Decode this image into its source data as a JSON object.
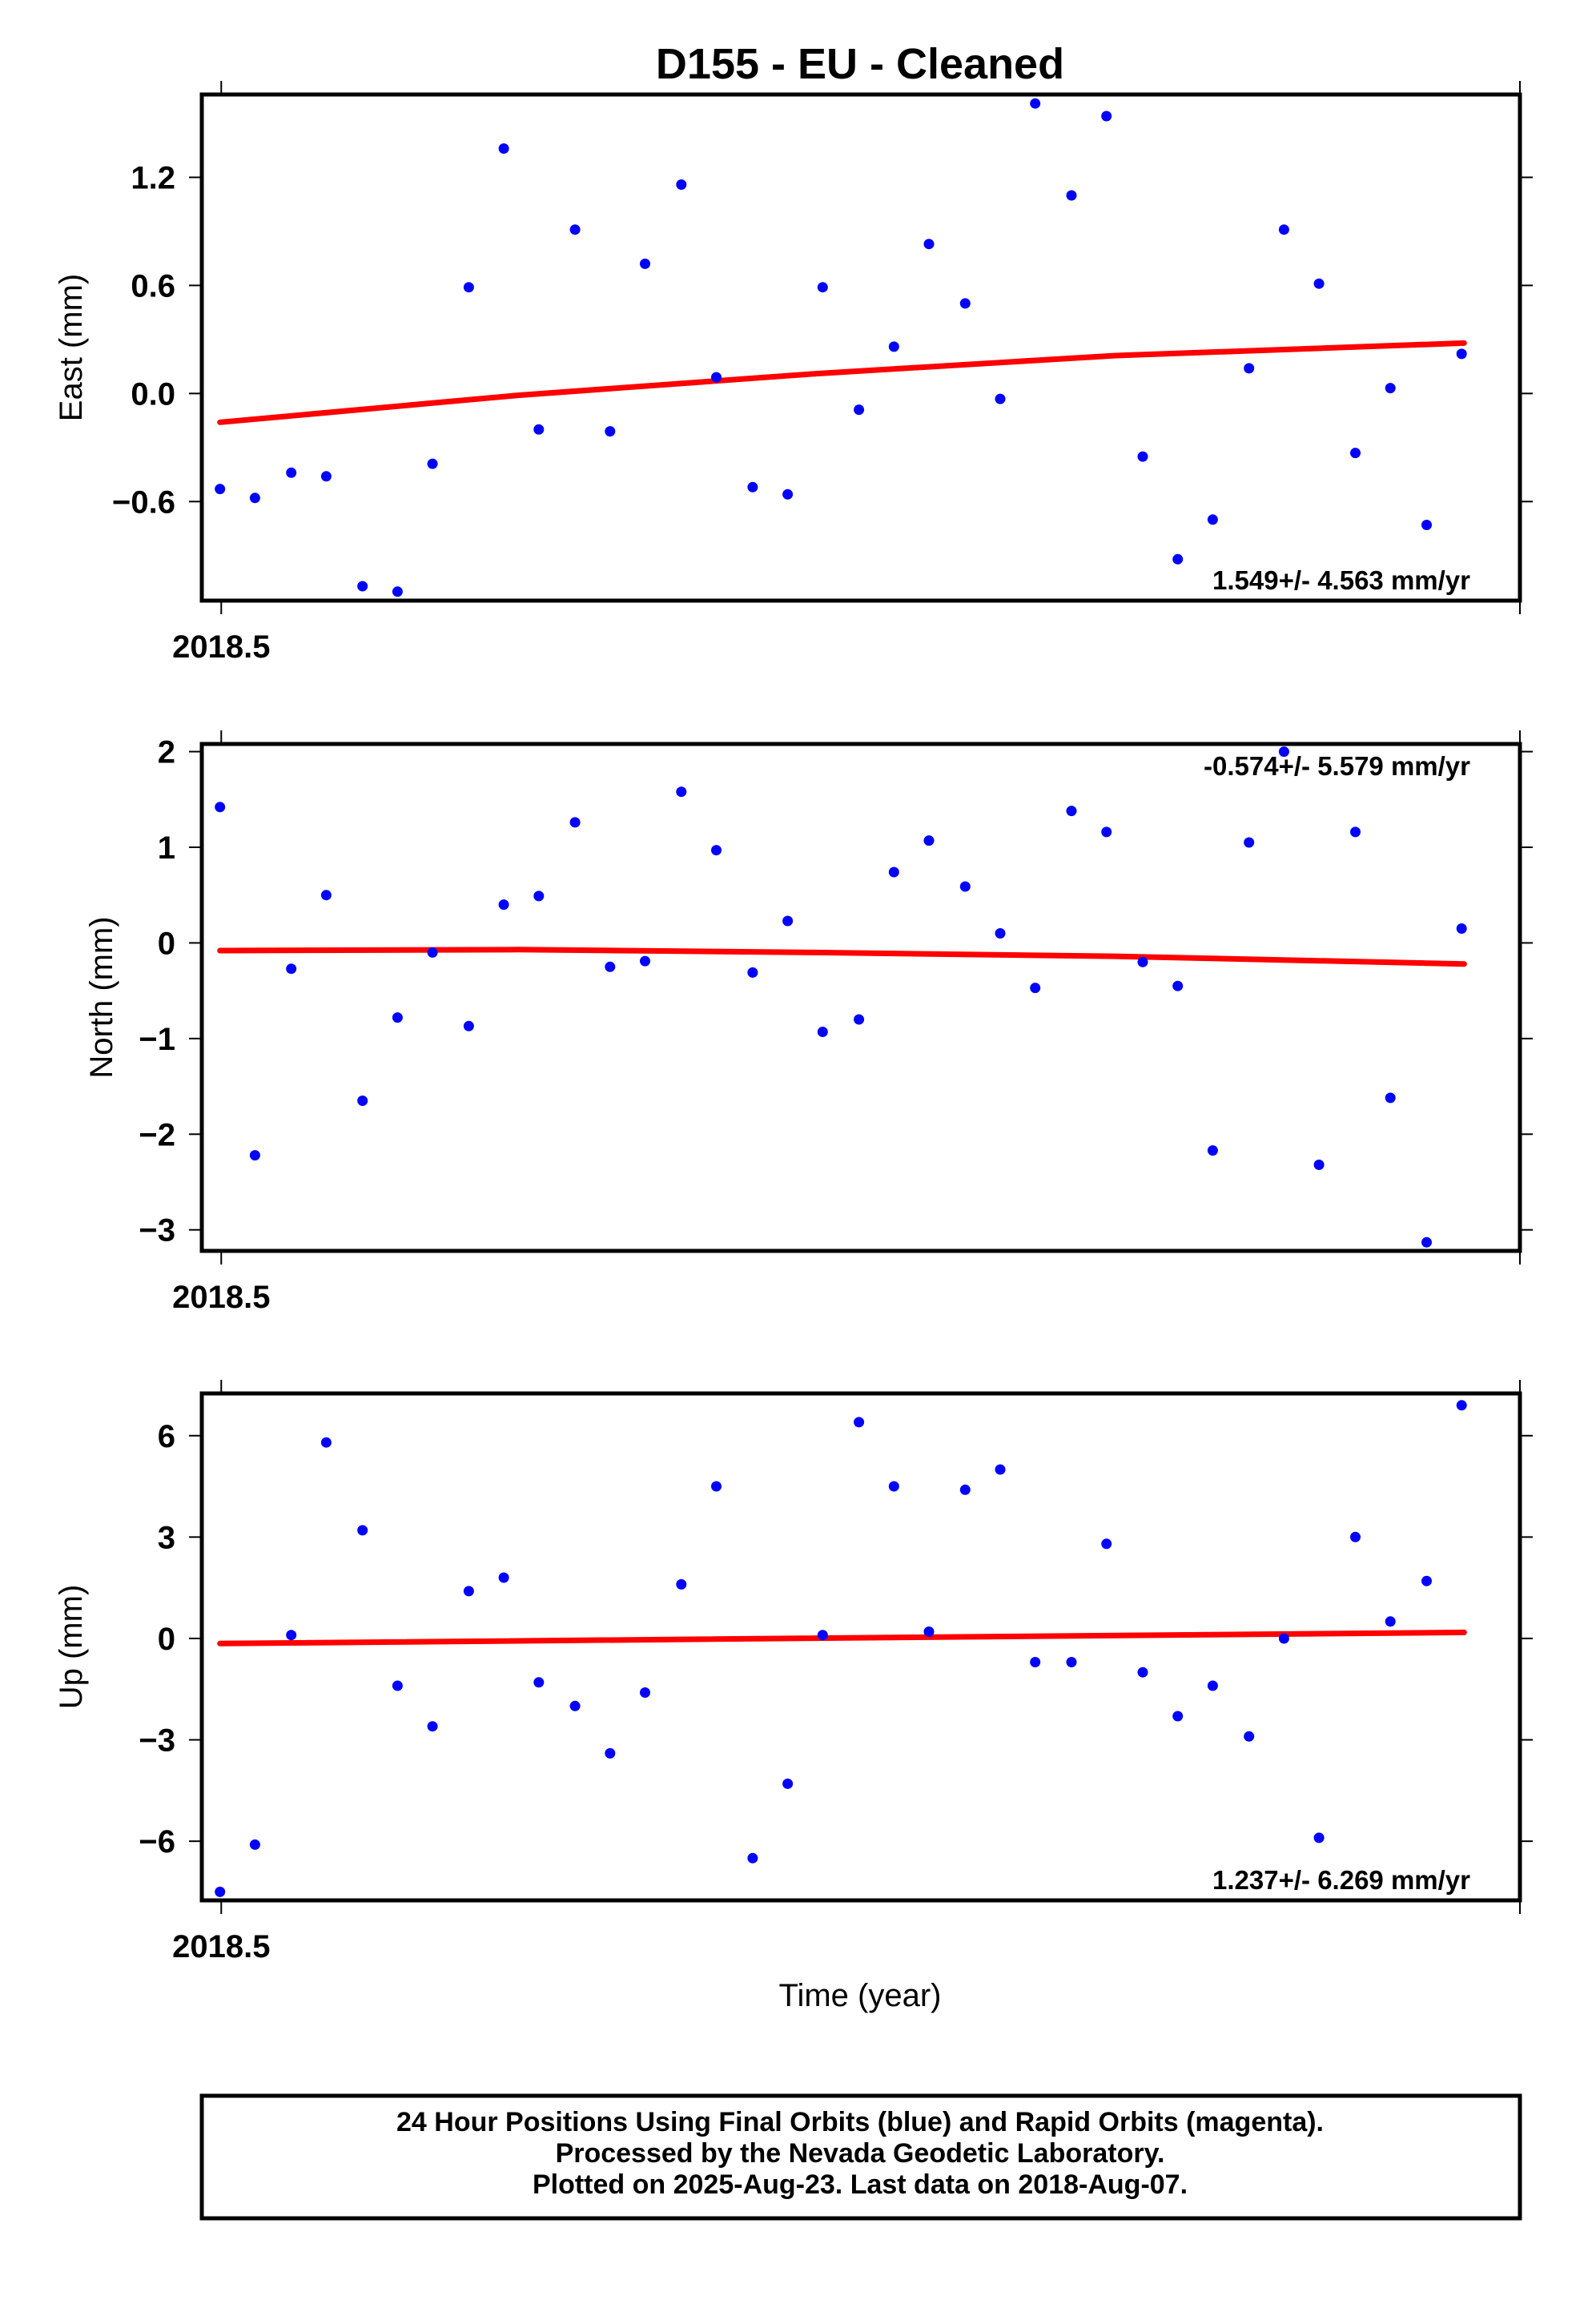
{
  "title": "D155  - EU - Cleaned",
  "x_axis_label": "Time (year)",
  "footer_lines": [
    "24 Hour Positions Using Final Orbits (blue) and Rapid Orbits (magenta).",
    "Processed by the Nevada Geodetic Laboratory.",
    "Plotted on 2025-Aug-23. Last data on 2018-Aug-07."
  ],
  "colors": {
    "points": "#0000ff",
    "trend": "#ff0000",
    "frame": "#000000"
  },
  "chart_data": [
    {
      "type": "scatter",
      "panel": "east",
      "ylabel": "East (mm)",
      "xlim": [
        2018.4985,
        2018.6002
      ],
      "ylim": [
        -1.15,
        1.66
      ],
      "yticks": [
        -0.6,
        0.0,
        0.6,
        1.2
      ],
      "ytick_labels": [
        "−0.6",
        "0.0",
        "0.6",
        "1.2"
      ],
      "xticks": [
        2018.5
      ],
      "xtick_labels": [
        "2018.5"
      ],
      "rate_label": "1.549+/- 4.563 mm/yr",
      "rate_position": "bottom-right",
      "x": [
        2018.4999,
        2018.5026,
        2018.5054,
        2018.5081,
        2018.5109,
        2018.5136,
        2018.5163,
        2018.5191,
        2018.5218,
        2018.5245,
        2018.5273,
        2018.53,
        2018.5327,
        2018.5355,
        2018.5382,
        2018.541,
        2018.5437,
        2018.5464,
        2018.5492,
        2018.5519,
        2018.5546,
        2018.5574,
        2018.5601,
        2018.5628,
        2018.5656,
        2018.5683,
        2018.5711,
        2018.5738,
        2018.5765,
        2018.5793,
        2018.582,
        2018.5847,
        2018.5875,
        2018.5902,
        2018.593,
        2018.5957
      ],
      "y": [
        -0.53,
        -0.58,
        -0.44,
        -0.46,
        -1.07,
        -1.1,
        -0.39,
        0.59,
        1.36,
        -0.2,
        0.91,
        -0.21,
        0.72,
        1.16,
        0.09,
        -0.52,
        -0.56,
        0.59,
        -0.09,
        0.26,
        0.83,
        0.5,
        -0.03,
        1.61,
        1.1,
        1.54,
        -0.35,
        -0.92,
        -0.7,
        0.14,
        0.91,
        0.61,
        -0.33,
        0.03,
        -0.73,
        0.22
      ],
      "trend": {
        "x": [
          2018.4999,
          2018.5229,
          2018.5459,
          2018.5689,
          2018.5959
        ],
        "y": [
          -0.16,
          -0.01,
          0.11,
          0.21,
          0.28
        ]
      }
    },
    {
      "type": "scatter",
      "panel": "north",
      "ylabel": "North (mm)",
      "xlim": [
        2018.4985,
        2018.6002
      ],
      "ylim": [
        -3.22,
        2.08
      ],
      "yticks": [
        -3,
        -2,
        -1,
        0,
        1,
        2
      ],
      "ytick_labels": [
        "−3",
        "−2",
        "−1",
        "0",
        "1",
        "2"
      ],
      "xticks": [
        2018.5
      ],
      "xtick_labels": [
        "2018.5"
      ],
      "rate_label": "-0.574+/- 5.579 mm/yr",
      "rate_position": "top-right",
      "x": [
        2018.4999,
        2018.5026,
        2018.5054,
        2018.5081,
        2018.5109,
        2018.5136,
        2018.5163,
        2018.5191,
        2018.5218,
        2018.5245,
        2018.5273,
        2018.53,
        2018.5327,
        2018.5355,
        2018.5382,
        2018.541,
        2018.5437,
        2018.5464,
        2018.5492,
        2018.5519,
        2018.5546,
        2018.5574,
        2018.5601,
        2018.5628,
        2018.5656,
        2018.5683,
        2018.5711,
        2018.5738,
        2018.5765,
        2018.5793,
        2018.582,
        2018.5847,
        2018.5875,
        2018.5902,
        2018.593,
        2018.5957
      ],
      "y": [
        1.42,
        -2.22,
        -0.27,
        0.5,
        -1.65,
        -0.78,
        -0.1,
        -0.87,
        0.4,
        0.49,
        1.26,
        -0.25,
        -0.19,
        1.58,
        0.97,
        -0.31,
        0.23,
        -0.93,
        -0.8,
        0.74,
        1.07,
        0.59,
        0.1,
        -0.47,
        1.38,
        1.16,
        -0.2,
        -0.45,
        -2.17,
        1.05,
        2.0,
        -2.32,
        1.16,
        -1.62,
        -3.13,
        0.15
      ],
      "trend": {
        "x": [
          2018.4999,
          2018.5229,
          2018.5459,
          2018.5689,
          2018.5959
        ],
        "y": [
          -0.08,
          -0.07,
          -0.1,
          -0.14,
          -0.22
        ]
      }
    },
    {
      "type": "scatter",
      "panel": "up",
      "ylabel": "Up (mm)",
      "xlim": [
        2018.4985,
        2018.6002
      ],
      "ylim": [
        -7.75,
        7.25
      ],
      "yticks": [
        -6,
        -3,
        0,
        3,
        6
      ],
      "ytick_labels": [
        "−6",
        "−3",
        "0",
        "3",
        "6"
      ],
      "xticks": [
        2018.5
      ],
      "xtick_labels": [
        "2018.5"
      ],
      "rate_label": "1.237+/- 6.269 mm/yr",
      "rate_position": "bottom-right",
      "x": [
        2018.4999,
        2018.5026,
        2018.5054,
        2018.5081,
        2018.5109,
        2018.5136,
        2018.5163,
        2018.5191,
        2018.5218,
        2018.5245,
        2018.5273,
        2018.53,
        2018.5327,
        2018.5355,
        2018.5382,
        2018.541,
        2018.5437,
        2018.5464,
        2018.5492,
        2018.5519,
        2018.5546,
        2018.5574,
        2018.5601,
        2018.5628,
        2018.5656,
        2018.5683,
        2018.5711,
        2018.5738,
        2018.5765,
        2018.5793,
        2018.582,
        2018.5847,
        2018.5875,
        2018.5902,
        2018.593,
        2018.5957
      ],
      "y": [
        -7.5,
        -6.1,
        0.1,
        5.8,
        3.2,
        -1.4,
        -2.6,
        1.4,
        1.8,
        -1.3,
        -2.0,
        -3.4,
        -1.6,
        1.6,
        4.5,
        -6.5,
        -4.3,
        0.1,
        6.4,
        4.5,
        0.2,
        4.4,
        5.0,
        -0.7,
        -0.7,
        2.8,
        -1.0,
        -2.3,
        -1.4,
        -2.9,
        0.0,
        -5.9,
        3.0,
        0.5,
        1.7,
        6.9
      ],
      "trend": {
        "x": [
          2018.4999,
          2018.5959
        ],
        "y": [
          -0.15,
          0.18
        ]
      }
    }
  ]
}
